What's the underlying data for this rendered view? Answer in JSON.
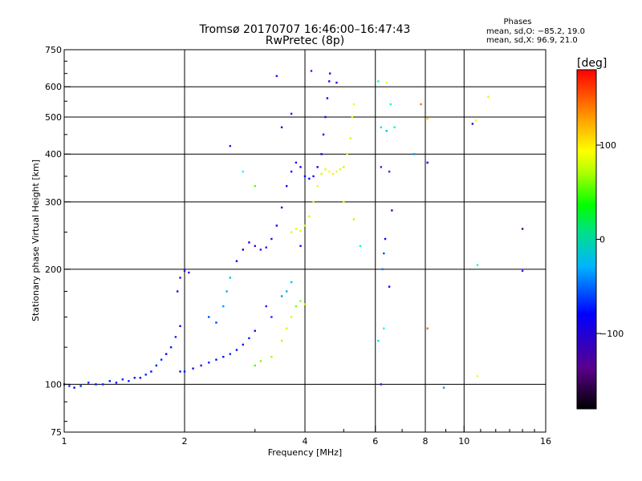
{
  "chart_data": {
    "type": "scatter",
    "title": "Tromsø 20170707 16:46:00–16:47:43",
    "subtitle": "RwPretec (8p)",
    "xlabel": "Frequency [MHz]",
    "ylabel": "Stationary phase Virtual Height [km]",
    "x_scale": "log",
    "y_scale": "log",
    "xlim": [
      1,
      16
    ],
    "ylim": [
      75,
      750
    ],
    "x_ticks": [
      1,
      2,
      4,
      6,
      8,
      10,
      16
    ],
    "x_tick_labels": [
      "1",
      "2",
      "4",
      "6",
      "8",
      "10",
      "16"
    ],
    "y_ticks": [
      75,
      100,
      200,
      300,
      400,
      500,
      600,
      750
    ],
    "y_tick_labels": [
      "75",
      "100",
      "200",
      "300",
      "400",
      "500",
      "600",
      "750"
    ],
    "grid": true,
    "stats": {
      "title": "Phases",
      "line1": "mean, sd,O: −85.2, 19.0",
      "line2": "mean, sd,X:  96.9, 21.0"
    },
    "colorbar": {
      "label": "[deg]",
      "range": [
        -180,
        180
      ],
      "ticks": [
        100,
        0,
        -100
      ],
      "tick_labels": [
        "100",
        "0",
        "−100"
      ]
    },
    "series": [
      {
        "mode": "O",
        "phase_mean": -85.2,
        "points": [
          {
            "x": 1.0,
            "y": 100,
            "p": -95
          },
          {
            "x": 1.03,
            "y": 99,
            "p": -90
          },
          {
            "x": 1.06,
            "y": 98,
            "p": -100
          },
          {
            "x": 1.1,
            "y": 99,
            "p": -95
          },
          {
            "x": 1.15,
            "y": 101,
            "p": -92
          },
          {
            "x": 1.2,
            "y": 100,
            "p": -98
          },
          {
            "x": 1.25,
            "y": 100,
            "p": -94
          },
          {
            "x": 1.3,
            "y": 102,
            "p": -96
          },
          {
            "x": 1.35,
            "y": 101,
            "p": -100
          },
          {
            "x": 1.4,
            "y": 103,
            "p": -90
          },
          {
            "x": 1.45,
            "y": 102,
            "p": -95
          },
          {
            "x": 1.5,
            "y": 104,
            "p": -97
          },
          {
            "x": 1.55,
            "y": 104,
            "p": -100
          },
          {
            "x": 1.6,
            "y": 106,
            "p": -92
          },
          {
            "x": 1.65,
            "y": 108,
            "p": -98
          },
          {
            "x": 1.7,
            "y": 112,
            "p": -95
          },
          {
            "x": 1.75,
            "y": 116,
            "p": -90
          },
          {
            "x": 1.8,
            "y": 120,
            "p": -100
          },
          {
            "x": 1.85,
            "y": 125,
            "p": -95
          },
          {
            "x": 1.9,
            "y": 133,
            "p": -92
          },
          {
            "x": 1.95,
            "y": 142,
            "p": -98
          },
          {
            "x": 1.92,
            "y": 175,
            "p": -110
          },
          {
            "x": 1.95,
            "y": 190,
            "p": -115
          },
          {
            "x": 2.0,
            "y": 198,
            "p": -118
          },
          {
            "x": 2.05,
            "y": 196,
            "p": -112
          },
          {
            "x": 1.95,
            "y": 108,
            "p": -95
          },
          {
            "x": 2.0,
            "y": 108,
            "p": -97
          },
          {
            "x": 2.1,
            "y": 110,
            "p": -100
          },
          {
            "x": 2.2,
            "y": 112,
            "p": -95
          },
          {
            "x": 2.3,
            "y": 114,
            "p": -92
          },
          {
            "x": 2.4,
            "y": 116,
            "p": -98
          },
          {
            "x": 2.5,
            "y": 118,
            "p": -95
          },
          {
            "x": 2.6,
            "y": 120,
            "p": -90
          },
          {
            "x": 2.7,
            "y": 123,
            "p": -100
          },
          {
            "x": 2.8,
            "y": 127,
            "p": -95
          },
          {
            "x": 2.9,
            "y": 132,
            "p": -92
          },
          {
            "x": 3.0,
            "y": 138,
            "p": -98
          },
          {
            "x": 2.5,
            "y": 160,
            "p": -60
          },
          {
            "x": 2.55,
            "y": 175,
            "p": -55
          },
          {
            "x": 2.6,
            "y": 190,
            "p": -50
          },
          {
            "x": 2.7,
            "y": 210,
            "p": -100
          },
          {
            "x": 2.8,
            "y": 225,
            "p": -105
          },
          {
            "x": 2.9,
            "y": 235,
            "p": -110
          },
          {
            "x": 3.0,
            "y": 230,
            "p": -115
          },
          {
            "x": 3.1,
            "y": 225,
            "p": -120
          },
          {
            "x": 3.2,
            "y": 228,
            "p": -118
          },
          {
            "x": 3.3,
            "y": 240,
            "p": -112
          },
          {
            "x": 3.4,
            "y": 260,
            "p": -108
          },
          {
            "x": 3.5,
            "y": 290,
            "p": -105
          },
          {
            "x": 3.6,
            "y": 330,
            "p": -110
          },
          {
            "x": 3.7,
            "y": 360,
            "p": -115
          },
          {
            "x": 3.8,
            "y": 380,
            "p": -112
          },
          {
            "x": 3.9,
            "y": 370,
            "p": -108
          },
          {
            "x": 4.0,
            "y": 350,
            "p": -100
          },
          {
            "x": 4.1,
            "y": 345,
            "p": -105
          },
          {
            "x": 4.2,
            "y": 350,
            "p": -110
          },
          {
            "x": 4.3,
            "y": 370,
            "p": -105
          },
          {
            "x": 4.4,
            "y": 400,
            "p": -100
          },
          {
            "x": 4.45,
            "y": 450,
            "p": -95
          },
          {
            "x": 4.5,
            "y": 500,
            "p": -110
          },
          {
            "x": 4.55,
            "y": 560,
            "p": -108
          },
          {
            "x": 4.6,
            "y": 620,
            "p": -112
          },
          {
            "x": 4.62,
            "y": 650,
            "p": -115
          },
          {
            "x": 3.2,
            "y": 160,
            "p": -120
          },
          {
            "x": 3.3,
            "y": 150,
            "p": -125
          },
          {
            "x": 3.5,
            "y": 170,
            "p": -60
          },
          {
            "x": 3.6,
            "y": 175,
            "p": -55
          },
          {
            "x": 3.7,
            "y": 185,
            "p": -50
          },
          {
            "x": 2.3,
            "y": 150,
            "p": -80
          },
          {
            "x": 2.4,
            "y": 145,
            "p": -85
          },
          {
            "x": 3.9,
            "y": 230,
            "p": -110
          }
        ]
      },
      {
        "mode": "X",
        "phase_mean": 96.9,
        "points": [
          {
            "x": 3.0,
            "y": 112,
            "p": 60
          },
          {
            "x": 3.1,
            "y": 115,
            "p": 75
          },
          {
            "x": 3.3,
            "y": 118,
            "p": 85
          },
          {
            "x": 3.5,
            "y": 130,
            "p": 90
          },
          {
            "x": 3.6,
            "y": 140,
            "p": 95
          },
          {
            "x": 3.7,
            "y": 150,
            "p": 100
          },
          {
            "x": 3.8,
            "y": 160,
            "p": 70
          },
          {
            "x": 3.9,
            "y": 165,
            "p": 80
          },
          {
            "x": 4.0,
            "y": 162,
            "p": 90
          },
          {
            "x": 3.7,
            "y": 250,
            "p": 100
          },
          {
            "x": 3.8,
            "y": 255,
            "p": 105
          },
          {
            "x": 3.9,
            "y": 252,
            "p": 102
          },
          {
            "x": 4.0,
            "y": 260,
            "p": 98
          },
          {
            "x": 4.1,
            "y": 275,
            "p": 95
          },
          {
            "x": 4.2,
            "y": 300,
            "p": 100
          },
          {
            "x": 4.3,
            "y": 330,
            "p": 105
          },
          {
            "x": 4.4,
            "y": 355,
            "p": 98
          },
          {
            "x": 4.5,
            "y": 365,
            "p": 100
          },
          {
            "x": 4.6,
            "y": 360,
            "p": 110
          },
          {
            "x": 4.7,
            "y": 355,
            "p": 115
          },
          {
            "x": 4.8,
            "y": 360,
            "p": 105
          },
          {
            "x": 4.9,
            "y": 365,
            "p": 100
          },
          {
            "x": 5.0,
            "y": 370,
            "p": 95
          },
          {
            "x": 5.1,
            "y": 400,
            "p": 100
          },
          {
            "x": 5.2,
            "y": 440,
            "p": 98
          },
          {
            "x": 5.25,
            "y": 500,
            "p": 102
          },
          {
            "x": 5.3,
            "y": 540,
            "p": 105
          },
          {
            "x": 6.4,
            "y": 615,
            "p": 110
          },
          {
            "x": 8.1,
            "y": 495,
            "p": 120
          },
          {
            "x": 10.7,
            "y": 490,
            "p": 105
          },
          {
            "x": 10.8,
            "y": 105,
            "p": 110
          },
          {
            "x": 11.5,
            "y": 565,
            "p": 100
          },
          {
            "x": 7.8,
            "y": 540,
            "p": 150
          }
        ]
      },
      {
        "mode": "scattered",
        "points": [
          {
            "x": 3.4,
            "y": 640,
            "p": -120
          },
          {
            "x": 4.15,
            "y": 660,
            "p": -130
          },
          {
            "x": 4.8,
            "y": 615,
            "p": -110
          },
          {
            "x": 3.7,
            "y": 510,
            "p": -115
          },
          {
            "x": 3.5,
            "y": 470,
            "p": -100
          },
          {
            "x": 2.6,
            "y": 420,
            "p": -118
          },
          {
            "x": 2.8,
            "y": 360,
            "p": -30
          },
          {
            "x": 3.0,
            "y": 330,
            "p": 60
          },
          {
            "x": 6.1,
            "y": 620,
            "p": -10
          },
          {
            "x": 6.55,
            "y": 540,
            "p": -20
          },
          {
            "x": 6.4,
            "y": 460,
            "p": -50
          },
          {
            "x": 6.2,
            "y": 470,
            "p": -40
          },
          {
            "x": 6.2,
            "y": 370,
            "p": -130
          },
          {
            "x": 6.5,
            "y": 360,
            "p": -125
          },
          {
            "x": 6.6,
            "y": 285,
            "p": -140
          },
          {
            "x": 6.35,
            "y": 240,
            "p": -100
          },
          {
            "x": 6.3,
            "y": 220,
            "p": -80
          },
          {
            "x": 6.25,
            "y": 200,
            "p": -70
          },
          {
            "x": 6.5,
            "y": 180,
            "p": -100
          },
          {
            "x": 6.3,
            "y": 140,
            "p": -30
          },
          {
            "x": 6.1,
            "y": 130,
            "p": -40
          },
          {
            "x": 6.2,
            "y": 100,
            "p": -120
          },
          {
            "x": 8.1,
            "y": 380,
            "p": -110
          },
          {
            "x": 8.1,
            "y": 140,
            "p": 150
          },
          {
            "x": 7.5,
            "y": 400,
            "p": -60
          },
          {
            "x": 8.9,
            "y": 98,
            "p": -60
          },
          {
            "x": 10.5,
            "y": 480,
            "p": -110
          },
          {
            "x": 10.8,
            "y": 205,
            "p": -20
          },
          {
            "x": 14.0,
            "y": 255,
            "p": -140
          },
          {
            "x": 14.0,
            "y": 198,
            "p": -130
          },
          {
            "x": 5.5,
            "y": 230,
            "p": -20
          },
          {
            "x": 5.3,
            "y": 270,
            "p": 90
          },
          {
            "x": 5.0,
            "y": 300,
            "p": 100
          },
          {
            "x": 6.7,
            "y": 470,
            "p": -10
          }
        ]
      }
    ]
  }
}
